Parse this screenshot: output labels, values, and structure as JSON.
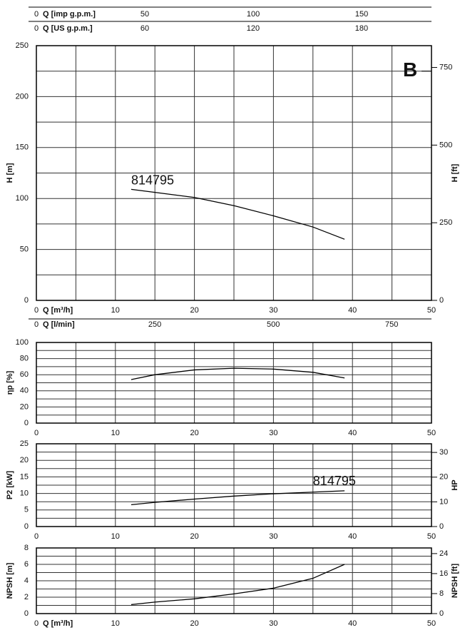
{
  "chart_data": [
    {
      "type": "line",
      "x": [
        12,
        15,
        20,
        25,
        30,
        35,
        39
      ],
      "series": [
        {
          "color": "#000000",
          "values": [
            109,
            106,
            101,
            93,
            83,
            72,
            60
          ]
        }
      ],
      "xlim": [
        0,
        50
      ],
      "xticks": [
        0,
        10,
        20,
        30,
        40,
        50
      ],
      "xminor": [
        5,
        15,
        25,
        35,
        45
      ],
      "xlabel": "Q [m³/h]",
      "ylim": [
        0,
        250
      ],
      "yticks": [
        0,
        50,
        100,
        150,
        200,
        250
      ],
      "yminor": [
        25,
        75,
        125,
        175,
        225
      ],
      "ylabel": "H [m]",
      "y2lim": [
        0,
        820.2
      ],
      "y2ticks": [
        0,
        250,
        500,
        750
      ],
      "y2label": "H [ft]",
      "annotations": [
        {
          "text": "814795",
          "x": 12,
          "y": 117
        },
        {
          "text": "B",
          "x": 47.3,
          "y": 225
        }
      ],
      "secondary_x_axes": [
        {
          "position": "top",
          "label": "Q [imp g.p.m.]",
          "xlim": [
            0,
            182.2
          ],
          "xticks": [
            0,
            50,
            100,
            150
          ]
        },
        {
          "position": "top",
          "label": "Q [US g.p.m.]",
          "xlim": [
            0,
            218.7
          ],
          "xticks": [
            0,
            60,
            120,
            180
          ]
        },
        {
          "position": "bottom",
          "label": "Q [l/min]",
          "xlim": [
            0,
            834
          ],
          "xticks": [
            0,
            250,
            500,
            750
          ]
        }
      ]
    },
    {
      "type": "line",
      "x": [
        12,
        15,
        20,
        25,
        30,
        35,
        39
      ],
      "series": [
        {
          "color": "#000000",
          "values": [
            54,
            60,
            66,
            68,
            67,
            63,
            56
          ]
        }
      ],
      "xlim": [
        0,
        50
      ],
      "xticks": [
        0,
        10,
        20,
        30,
        40,
        50
      ],
      "xminor": [
        5,
        15,
        25,
        35,
        45
      ],
      "ylim": [
        0,
        100
      ],
      "yticks": [
        0,
        20,
        40,
        60,
        80,
        100
      ],
      "yminor": [
        10,
        30,
        50,
        70,
        90
      ],
      "ylabel": "ηp [%]"
    },
    {
      "type": "line",
      "x": [
        12,
        15,
        20,
        25,
        30,
        35,
        39
      ],
      "series": [
        {
          "color": "#000000",
          "values": [
            6.6,
            7.3,
            8.3,
            9.2,
            9.9,
            10.4,
            10.8
          ]
        }
      ],
      "xlim": [
        0,
        50
      ],
      "xticks": [
        0,
        10,
        20,
        30,
        40,
        50
      ],
      "xminor": [
        5,
        15,
        25,
        35,
        45
      ],
      "ylim": [
        0,
        25
      ],
      "yticks": [
        0,
        5,
        10,
        15,
        20,
        25
      ],
      "yminor": [
        2.5,
        7.5,
        12.5,
        17.5,
        22.5
      ],
      "ylabel": "P2 [kW]",
      "y2lim": [
        0,
        33.5
      ],
      "y2ticks": [
        0,
        10,
        20,
        30
      ],
      "y2label": "HP",
      "annotations": [
        {
          "text": "814795",
          "x": 35,
          "y": 13.5
        }
      ]
    },
    {
      "type": "line",
      "x": [
        12,
        15,
        20,
        25,
        30,
        35,
        39
      ],
      "series": [
        {
          "color": "#000000",
          "values": [
            1.1,
            1.4,
            1.8,
            2.4,
            3.1,
            4.3,
            6.0
          ]
        }
      ],
      "xlim": [
        0,
        50
      ],
      "xticks": [
        0,
        10,
        20,
        30,
        40,
        50
      ],
      "xminor": [
        5,
        15,
        25,
        35,
        45
      ],
      "xlabel": "Q [m³/h]",
      "ylim": [
        0,
        8
      ],
      "yticks": [
        0,
        2,
        4,
        6,
        8
      ],
      "yminor": [
        1,
        3,
        5,
        7
      ],
      "ylabel": "NPSH [m]",
      "y2lim": [
        0,
        26.25
      ],
      "y2ticks": [
        0,
        8,
        16,
        24
      ],
      "y2label": "NPSH [ft]"
    }
  ]
}
